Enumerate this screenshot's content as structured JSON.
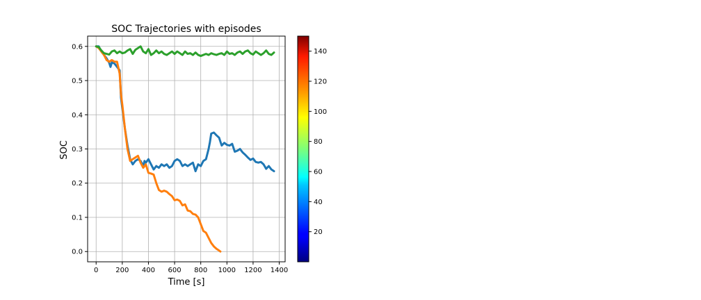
{
  "chart_data": {
    "type": "line",
    "title": "SOC Trajectories with episodes",
    "xlabel": "Time [s]",
    "ylabel": "SOC",
    "xlim": [
      -65,
      1445
    ],
    "ylim": [
      -0.03,
      0.63
    ],
    "grid": true,
    "x_ticks": [
      0,
      200,
      400,
      600,
      800,
      1000,
      1200,
      1400
    ],
    "y_ticks": [
      0.0,
      0.1,
      0.2,
      0.3,
      0.4,
      0.5,
      0.6
    ],
    "x_tick_labels": [
      "0",
      "200",
      "400",
      "600",
      "800",
      "1000",
      "1200",
      "1400"
    ],
    "y_tick_labels": [
      "0.0",
      "0.1",
      "0.2",
      "0.3",
      "0.4",
      "0.5",
      "0.6"
    ],
    "series": [
      {
        "color": "#1f77b4",
        "x": [
          0,
          20,
          40,
          60,
          80,
          100,
          110,
          120,
          140,
          160,
          180,
          190,
          200,
          220,
          240,
          260,
          280,
          290,
          300,
          320,
          340,
          360,
          370,
          380,
          400,
          420,
          440,
          450,
          460,
          480,
          500,
          520,
          540,
          560,
          580,
          600,
          620,
          640,
          660,
          680,
          700,
          720,
          740,
          760,
          780,
          800,
          820,
          840,
          860,
          870,
          880,
          900,
          920,
          940,
          960,
          980,
          1000,
          1020,
          1040,
          1060,
          1080,
          1100,
          1120,
          1140,
          1160,
          1180,
          1200,
          1220,
          1240,
          1260,
          1280,
          1300,
          1320,
          1340,
          1360
        ],
        "y": [
          0.6,
          0.6,
          0.585,
          0.575,
          0.565,
          0.552,
          0.54,
          0.553,
          0.55,
          0.54,
          0.53,
          0.45,
          0.42,
          0.36,
          0.31,
          0.27,
          0.255,
          0.26,
          0.265,
          0.27,
          0.265,
          0.25,
          0.265,
          0.26,
          0.27,
          0.255,
          0.24,
          0.245,
          0.25,
          0.245,
          0.255,
          0.25,
          0.255,
          0.245,
          0.25,
          0.265,
          0.27,
          0.265,
          0.25,
          0.255,
          0.25,
          0.255,
          0.26,
          0.235,
          0.255,
          0.25,
          0.265,
          0.27,
          0.3,
          0.32,
          0.345,
          0.348,
          0.34,
          0.333,
          0.31,
          0.318,
          0.312,
          0.31,
          0.315,
          0.292,
          0.295,
          0.3,
          0.29,
          0.283,
          0.275,
          0.268,
          0.272,
          0.262,
          0.26,
          0.262,
          0.255,
          0.242,
          0.25,
          0.24,
          0.235
        ]
      },
      {
        "color": "#ff7f0e",
        "x": [
          0,
          20,
          40,
          60,
          80,
          100,
          120,
          140,
          160,
          180,
          190,
          200,
          220,
          240,
          260,
          280,
          300,
          320,
          340,
          360,
          380,
          400,
          420,
          440,
          460,
          480,
          500,
          520,
          540,
          560,
          580,
          600,
          620,
          640,
          660,
          680,
          700,
          720,
          740,
          760,
          780,
          800,
          820,
          840,
          860,
          880,
          900,
          920,
          940,
          950
        ],
        "y": [
          0.6,
          0.595,
          0.585,
          0.575,
          0.56,
          0.555,
          0.56,
          0.555,
          0.555,
          0.52,
          0.46,
          0.43,
          0.36,
          0.3,
          0.265,
          0.27,
          0.275,
          0.28,
          0.26,
          0.245,
          0.255,
          0.23,
          0.228,
          0.225,
          0.2,
          0.18,
          0.175,
          0.178,
          0.175,
          0.168,
          0.162,
          0.15,
          0.152,
          0.148,
          0.135,
          0.138,
          0.12,
          0.118,
          0.11,
          0.108,
          0.1,
          0.08,
          0.06,
          0.055,
          0.04,
          0.025,
          0.015,
          0.008,
          0.003,
          0.0
        ]
      },
      {
        "color": "#2ca02c",
        "x": [
          0,
          20,
          40,
          60,
          80,
          100,
          120,
          140,
          160,
          180,
          200,
          220,
          240,
          260,
          280,
          300,
          320,
          340,
          360,
          380,
          400,
          420,
          440,
          460,
          480,
          500,
          520,
          540,
          560,
          580,
          600,
          620,
          640,
          660,
          680,
          700,
          720,
          740,
          760,
          780,
          800,
          820,
          840,
          860,
          880,
          900,
          920,
          940,
          960,
          980,
          1000,
          1020,
          1040,
          1060,
          1080,
          1100,
          1120,
          1140,
          1160,
          1180,
          1200,
          1220,
          1240,
          1260,
          1280,
          1300,
          1320,
          1340,
          1360
        ],
        "y": [
          0.6,
          0.598,
          0.588,
          0.58,
          0.578,
          0.576,
          0.585,
          0.588,
          0.58,
          0.585,
          0.58,
          0.582,
          0.588,
          0.592,
          0.578,
          0.59,
          0.595,
          0.6,
          0.585,
          0.58,
          0.592,
          0.575,
          0.58,
          0.588,
          0.58,
          0.585,
          0.578,
          0.575,
          0.58,
          0.585,
          0.578,
          0.585,
          0.58,
          0.575,
          0.585,
          0.578,
          0.58,
          0.575,
          0.582,
          0.575,
          0.572,
          0.575,
          0.578,
          0.575,
          0.58,
          0.577,
          0.575,
          0.578,
          0.58,
          0.575,
          0.585,
          0.578,
          0.58,
          0.575,
          0.582,
          0.585,
          0.578,
          0.585,
          0.588,
          0.58,
          0.576,
          0.585,
          0.58,
          0.575,
          0.58,
          0.588,
          0.578,
          0.575,
          0.582
        ]
      }
    ],
    "colorbar": {
      "colormap": "jet",
      "range": [
        0,
        150
      ],
      "ticks": [
        20,
        40,
        60,
        80,
        100,
        120,
        140
      ],
      "tick_labels": [
        "20",
        "40",
        "60",
        "80",
        "100",
        "120",
        "140"
      ]
    },
    "colors": {
      "grid": "#b0b0b0",
      "axis": "#000000",
      "background": "#ffffff"
    }
  }
}
